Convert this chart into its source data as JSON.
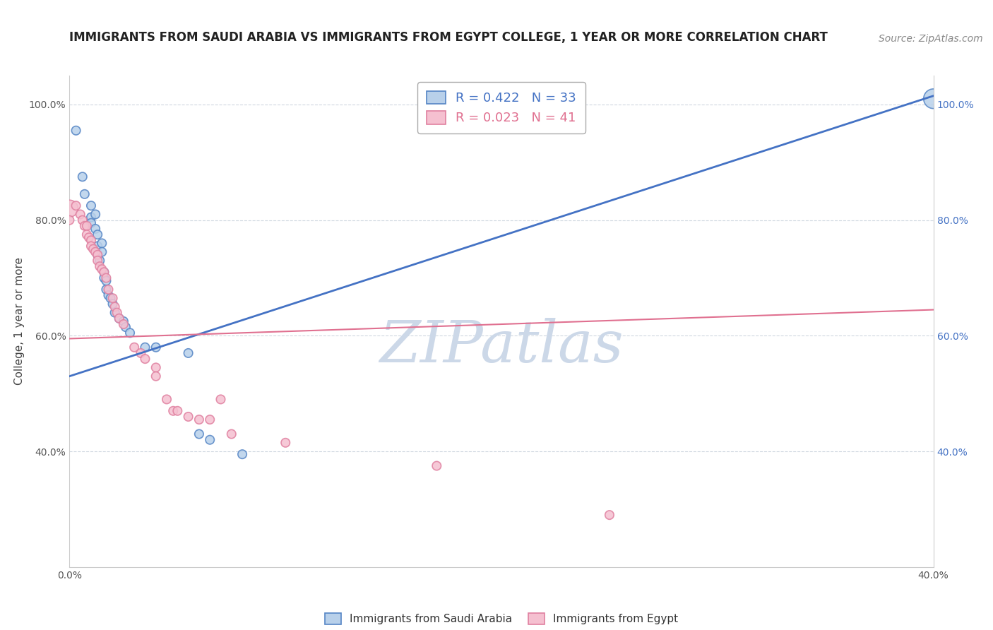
{
  "title": "IMMIGRANTS FROM SAUDI ARABIA VS IMMIGRANTS FROM EGYPT COLLEGE, 1 YEAR OR MORE CORRELATION CHART",
  "source": "Source: ZipAtlas.com",
  "ylabel": "College, 1 year or more",
  "xlim": [
    0.0,
    0.4
  ],
  "ylim": [
    0.2,
    1.05
  ],
  "xtick_vals": [
    0.0,
    0.1,
    0.2,
    0.3,
    0.4
  ],
  "xtick_labels": [
    "0.0%",
    "",
    "",
    "",
    "40.0%"
  ],
  "ytick_vals": [
    0.4,
    0.6,
    0.8,
    1.0
  ],
  "ytick_labels": [
    "40.0%",
    "60.0%",
    "80.0%",
    "100.0%"
  ],
  "legend_blue_label": "R = 0.422   N = 33",
  "legend_pink_label": "R = 0.023   N = 41",
  "legend_bottom_blue": "Immigrants from Saudi Arabia",
  "legend_bottom_pink": "Immigrants from Egypt",
  "blue_color": "#b8d0ea",
  "blue_edge_color": "#5585c5",
  "pink_color": "#f5c0d0",
  "pink_edge_color": "#e080a0",
  "blue_line_color": "#4472c4",
  "pink_line_color": "#e07090",
  "scatter_blue": [
    [
      0.003,
      0.955
    ],
    [
      0.006,
      0.875
    ],
    [
      0.007,
      0.845
    ],
    [
      0.01,
      0.825
    ],
    [
      0.01,
      0.805
    ],
    [
      0.01,
      0.795
    ],
    [
      0.012,
      0.81
    ],
    [
      0.012,
      0.785
    ],
    [
      0.013,
      0.775
    ],
    [
      0.013,
      0.755
    ],
    [
      0.013,
      0.74
    ],
    [
      0.014,
      0.73
    ],
    [
      0.015,
      0.76
    ],
    [
      0.015,
      0.745
    ],
    [
      0.016,
      0.71
    ],
    [
      0.016,
      0.7
    ],
    [
      0.017,
      0.695
    ],
    [
      0.017,
      0.68
    ],
    [
      0.018,
      0.67
    ],
    [
      0.019,
      0.665
    ],
    [
      0.02,
      0.655
    ],
    [
      0.021,
      0.64
    ],
    [
      0.023,
      0.63
    ],
    [
      0.025,
      0.625
    ],
    [
      0.026,
      0.615
    ],
    [
      0.028,
      0.605
    ],
    [
      0.035,
      0.58
    ],
    [
      0.04,
      0.58
    ],
    [
      0.055,
      0.57
    ],
    [
      0.06,
      0.43
    ],
    [
      0.065,
      0.42
    ],
    [
      0.08,
      0.395
    ],
    [
      0.4,
      1.01
    ]
  ],
  "scatter_blue_sizes": [
    80,
    80,
    80,
    80,
    80,
    80,
    80,
    80,
    80,
    80,
    80,
    80,
    80,
    80,
    80,
    80,
    80,
    80,
    80,
    80,
    80,
    80,
    80,
    80,
    80,
    80,
    80,
    80,
    80,
    80,
    80,
    80,
    400
  ],
  "scatter_pink": [
    [
      0.0,
      0.82
    ],
    [
      0.0,
      0.8
    ],
    [
      0.003,
      0.825
    ],
    [
      0.005,
      0.81
    ],
    [
      0.006,
      0.8
    ],
    [
      0.007,
      0.79
    ],
    [
      0.008,
      0.79
    ],
    [
      0.008,
      0.775
    ],
    [
      0.009,
      0.77
    ],
    [
      0.01,
      0.765
    ],
    [
      0.01,
      0.755
    ],
    [
      0.011,
      0.75
    ],
    [
      0.012,
      0.745
    ],
    [
      0.013,
      0.74
    ],
    [
      0.013,
      0.73
    ],
    [
      0.014,
      0.72
    ],
    [
      0.015,
      0.715
    ],
    [
      0.016,
      0.71
    ],
    [
      0.017,
      0.7
    ],
    [
      0.018,
      0.68
    ],
    [
      0.02,
      0.665
    ],
    [
      0.021,
      0.65
    ],
    [
      0.022,
      0.64
    ],
    [
      0.023,
      0.63
    ],
    [
      0.025,
      0.62
    ],
    [
      0.03,
      0.58
    ],
    [
      0.033,
      0.57
    ],
    [
      0.035,
      0.56
    ],
    [
      0.04,
      0.545
    ],
    [
      0.04,
      0.53
    ],
    [
      0.045,
      0.49
    ],
    [
      0.048,
      0.47
    ],
    [
      0.05,
      0.47
    ],
    [
      0.055,
      0.46
    ],
    [
      0.06,
      0.455
    ],
    [
      0.065,
      0.455
    ],
    [
      0.07,
      0.49
    ],
    [
      0.075,
      0.43
    ],
    [
      0.1,
      0.415
    ],
    [
      0.17,
      0.375
    ],
    [
      0.25,
      0.29
    ]
  ],
  "scatter_pink_sizes": [
    300,
    80,
    80,
    80,
    80,
    80,
    80,
    80,
    80,
    80,
    80,
    80,
    80,
    80,
    80,
    80,
    80,
    80,
    80,
    80,
    80,
    80,
    80,
    80,
    80,
    80,
    80,
    80,
    80,
    80,
    80,
    80,
    80,
    80,
    80,
    80,
    80,
    80,
    80,
    80,
    80
  ],
  "blue_trend_x": [
    0.0,
    0.4
  ],
  "blue_trend_y": [
    0.53,
    1.015
  ],
  "pink_trend_x": [
    0.0,
    0.4
  ],
  "pink_trend_y": [
    0.595,
    0.645
  ],
  "watermark": "ZIPatlas",
  "watermark_color": "#ccd8e8",
  "background_color": "#ffffff",
  "grid_color": "#d0d8e0",
  "title_fontsize": 12,
  "source_fontsize": 10,
  "label_fontsize": 11,
  "tick_fontsize": 10
}
